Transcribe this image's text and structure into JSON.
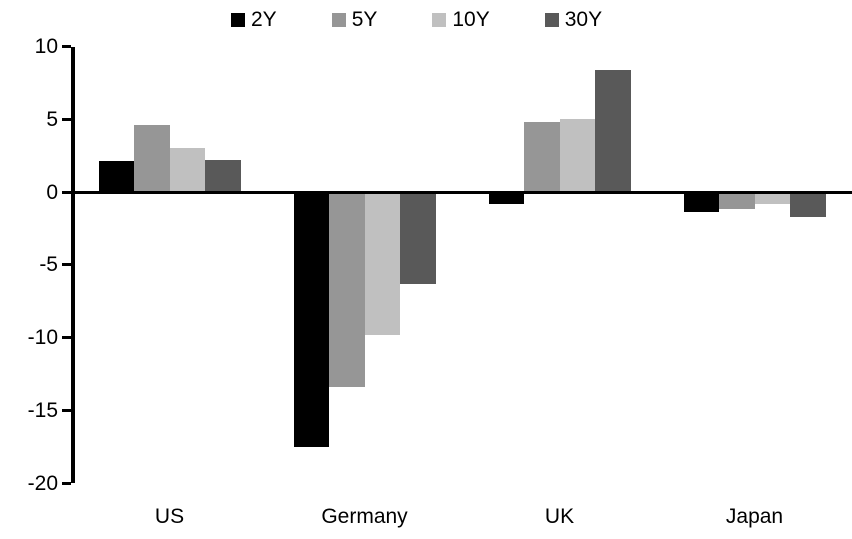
{
  "chart_data": {
    "type": "bar",
    "title": "",
    "categories": [
      "US",
      "Germany",
      "UK",
      "Japan"
    ],
    "series": [
      {
        "name": "2Y",
        "color": "#000000",
        "values": [
          2.1,
          -17.5,
          -0.8,
          -1.4
        ]
      },
      {
        "name": "5Y",
        "color": "#969696",
        "values": [
          4.6,
          -13.4,
          4.8,
          -1.2
        ]
      },
      {
        "name": "10Y",
        "color": "#c0c0c0",
        "values": [
          3.0,
          -9.8,
          5.0,
          -0.8
        ]
      },
      {
        "name": "30Y",
        "color": "#595959",
        "values": [
          2.2,
          -6.3,
          8.4,
          -1.7
        ]
      }
    ],
    "ylim": [
      -20,
      10
    ],
    "yticks": [
      10,
      5,
      0,
      -5,
      -10,
      -15,
      -20
    ],
    "ytick_labels": [
      "10",
      "5",
      "0",
      "-5",
      "-10",
      "-15",
      "-20"
    ],
    "xlabel": "",
    "ylabel": "",
    "legend_position": "top",
    "grid": false,
    "axis_color": "#000000",
    "background_color": "#ffffff"
  }
}
